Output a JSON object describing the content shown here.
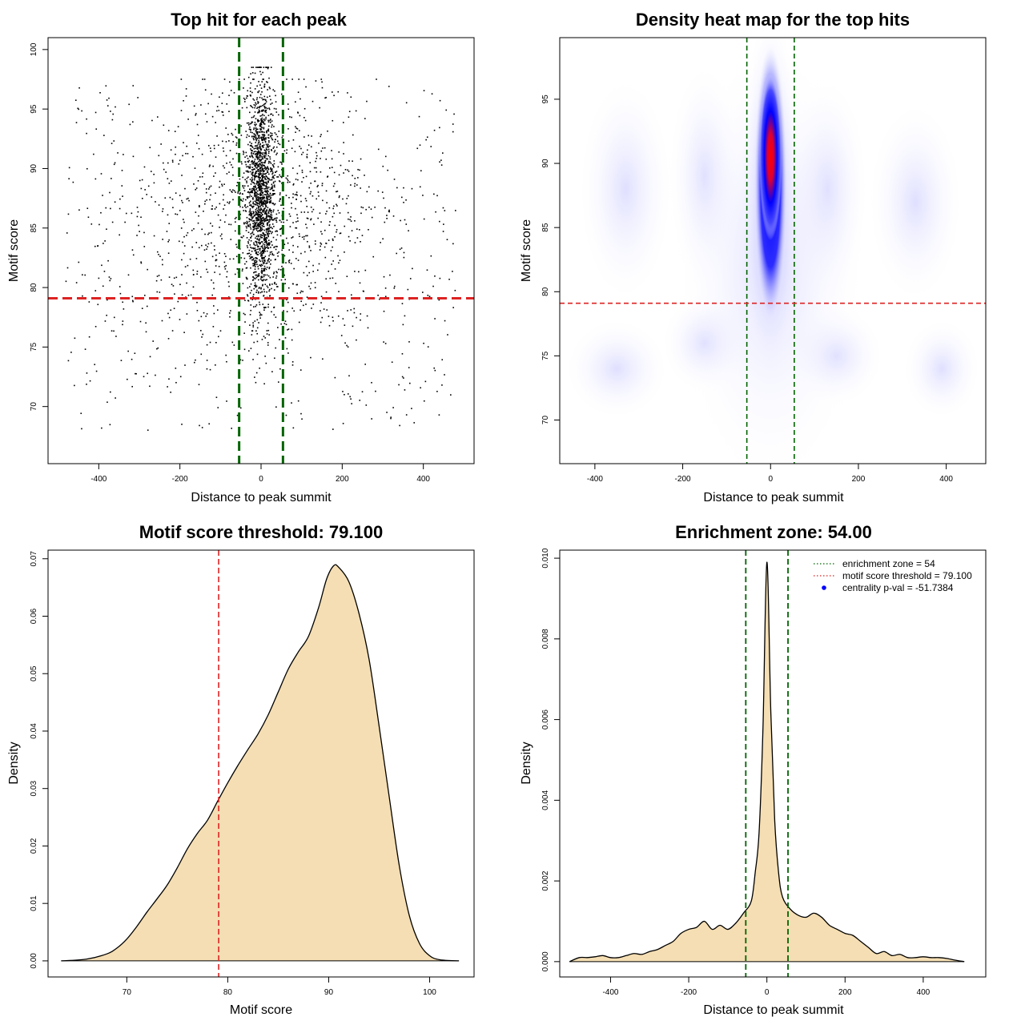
{
  "chart_data": [
    {
      "type": "scatter",
      "title": "Top hit for each peak",
      "xlabel": "Distance to peak summit",
      "ylabel": "Motif score",
      "xlim": [
        -525,
        525
      ],
      "ylim": [
        65.2,
        101
      ],
      "xticks": [
        -400,
        -200,
        0,
        200,
        400
      ],
      "yticks": [
        70,
        75,
        80,
        85,
        90,
        95,
        100
      ],
      "xtick_labels": [
        "-400",
        "-200",
        "0",
        "200",
        "400"
      ],
      "ytick_labels": [
        "70",
        "75",
        "80",
        "85",
        "90",
        "95",
        "100"
      ],
      "point_count": 3000,
      "point_distribution": {
        "central_fraction": 0.52,
        "central_x_mean": 0,
        "central_x_sd": 18,
        "central_y_mean": 88,
        "central_y_sd": 4.5,
        "broad_fraction": 0.3,
        "broad_x_mean": 0,
        "broad_x_sd": 150,
        "broad_y_mean": 86,
        "broad_y_sd": 5.5,
        "background_fraction": 0.18,
        "background_x_range": [
          -480,
          480
        ],
        "background_y_range": [
          68,
          97
        ]
      },
      "vlines": [
        -54,
        54
      ],
      "hline": 79.1,
      "colors": {
        "points": "#000000",
        "vlines": "#006400",
        "hline": "#dd2222"
      }
    },
    {
      "type": "heatmap",
      "title": "Density heat map for the top hits",
      "xlabel": "Distance to peak summit",
      "ylabel": "Motif score",
      "xlim": [
        -480,
        490
      ],
      "ylim": [
        66.6,
        99.8
      ],
      "xticks": [
        -400,
        -200,
        0,
        200,
        400
      ],
      "yticks": [
        70,
        75,
        80,
        85,
        90,
        95
      ],
      "xtick_labels": [
        "-400",
        "-200",
        "0",
        "200",
        "400"
      ],
      "ytick_labels": [
        "70",
        "75",
        "80",
        "85",
        "90",
        "95"
      ],
      "vlines": [
        -54,
        54
      ],
      "hline": 79.1,
      "density_peak": {
        "x": 0,
        "y": 90.5
      },
      "colors": {
        "low": "#ffffff",
        "mid": "#0000ff",
        "high": "#ff0000",
        "vlines": "#006400",
        "hline": "#dd2222"
      }
    },
    {
      "type": "area",
      "title": "Motif score threshold: 79.100",
      "xlabel": "Motif score",
      "ylabel": "Density",
      "xlim": [
        62.2,
        104.4
      ],
      "ylim": [
        -0.0028,
        0.0715
      ],
      "xticks": [
        70,
        80,
        90,
        100
      ],
      "yticks": [
        0,
        0.01,
        0.02,
        0.03,
        0.04,
        0.05,
        0.06,
        0.07
      ],
      "xtick_labels": [
        "70",
        "80",
        "90",
        "100"
      ],
      "ytick_labels": [
        "0.00",
        "0.01",
        "0.02",
        "0.03",
        "0.04",
        "0.05",
        "0.06",
        "0.07"
      ],
      "x": [
        63.5,
        66,
        68,
        69,
        70,
        71,
        72,
        73,
        74,
        75,
        76,
        77,
        78,
        79,
        80,
        81,
        82,
        83,
        84,
        85,
        86,
        87,
        88,
        89,
        89.8,
        90.5,
        91,
        92,
        93,
        94,
        95,
        96,
        97,
        98,
        99,
        100,
        101,
        102.9
      ],
      "y": [
        0,
        0.0003,
        0.0012,
        0.0022,
        0.0038,
        0.006,
        0.0085,
        0.0108,
        0.0132,
        0.0162,
        0.0195,
        0.0222,
        0.0245,
        0.0278,
        0.031,
        0.034,
        0.0368,
        0.0395,
        0.0428,
        0.0468,
        0.0508,
        0.0538,
        0.0565,
        0.0615,
        0.0665,
        0.0688,
        0.0685,
        0.066,
        0.0605,
        0.0525,
        0.0408,
        0.0285,
        0.0165,
        0.0078,
        0.003,
        0.0009,
        0.0002,
        0
      ],
      "vline": 79.1,
      "colors": {
        "fill": "#f5deb3",
        "line": "#000000",
        "vline": "#dd2222"
      }
    },
    {
      "type": "area",
      "title": "Enrichment zone: 54.00",
      "xlabel": "Distance to peak summit",
      "ylabel": "Density",
      "xlim": [
        -530,
        560
      ],
      "ylim": [
        -0.00038,
        0.0102
      ],
      "xticks": [
        -400,
        -200,
        0,
        200,
        400
      ],
      "yticks": [
        0,
        0.002,
        0.004,
        0.006,
        0.008,
        0.01
      ],
      "xtick_labels": [
        "-400",
        "-200",
        "0",
        "200",
        "400"
      ],
      "ytick_labels": [
        "0.000",
        "0.002",
        "0.004",
        "0.006",
        "0.008",
        "0.010"
      ],
      "x": [
        -505,
        -480,
        -460,
        -440,
        -420,
        -400,
        -380,
        -360,
        -340,
        -320,
        -300,
        -280,
        -260,
        -240,
        -220,
        -200,
        -180,
        -160,
        -140,
        -120,
        -100,
        -80,
        -60,
        -40,
        -30,
        -20,
        -10,
        0,
        10,
        20,
        30,
        40,
        60,
        80,
        100,
        120,
        140,
        160,
        180,
        200,
        220,
        240,
        260,
        280,
        300,
        320,
        340,
        360,
        380,
        400,
        420,
        440,
        460,
        480,
        505
      ],
      "y": [
        0,
        0.0001,
        0.0001,
        0.00012,
        0.00015,
        0.0001,
        0.0001,
        0.00015,
        0.0002,
        0.00018,
        0.00025,
        0.0003,
        0.0004,
        0.0005,
        0.0007,
        0.0008,
        0.00085,
        0.001,
        0.0008,
        0.0009,
        0.0008,
        0.00095,
        0.0012,
        0.0015,
        0.0022,
        0.0032,
        0.0058,
        0.0099,
        0.0062,
        0.0035,
        0.0022,
        0.0016,
        0.0013,
        0.00115,
        0.0011,
        0.0012,
        0.0011,
        0.0009,
        0.0008,
        0.0007,
        0.00065,
        0.0005,
        0.00035,
        0.0002,
        0.00025,
        0.00015,
        0.00018,
        0.0001,
        0.0001,
        0.00012,
        0.0001,
        0.0001,
        8e-05,
        4e-05,
        0
      ],
      "vlines": [
        -54,
        54
      ],
      "legend": [
        {
          "label": "enrichment zone = 54",
          "style": "dotted-line",
          "color": "#006400"
        },
        {
          "label": "motif score threshold = 79.100",
          "style": "dotted-line",
          "color": "#dd2222"
        },
        {
          "label": "centrality p-val = -51.7384",
          "style": "point",
          "color": "#0000ff"
        }
      ],
      "legend_position": "top-right",
      "colors": {
        "fill": "#f5deb3",
        "line": "#000000",
        "vlines": "#006400"
      }
    }
  ]
}
